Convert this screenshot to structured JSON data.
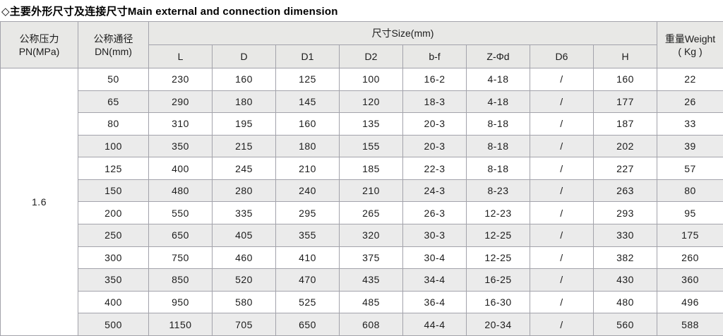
{
  "title": "◇主要外形尺寸及连接尺寸Main external and connection dimension",
  "colors": {
    "border": "#a3a3ab",
    "header_bg": "#e8e8e6",
    "row_bg": "#ffffff",
    "row_alt_bg": "#ebebeb",
    "text": "#1c1c1c"
  },
  "table": {
    "pn_header": [
      "公称压力",
      "PN(MPa)"
    ],
    "dn_header": [
      "公称通径",
      "DN(mm)"
    ],
    "size_group_header": "尺寸Size(mm)",
    "size_columns": [
      "L",
      "D",
      "D1",
      "D2",
      "b-f",
      "Z-Φd",
      "D6",
      "H"
    ],
    "weight_header": [
      "重量Weight",
      "( Kg )"
    ],
    "pn_value": "1.6",
    "rows": [
      {
        "dn": "50",
        "values": [
          "230",
          "160",
          "125",
          "100",
          "16-2",
          "4-18",
          "/",
          "160",
          "22"
        ]
      },
      {
        "dn": "65",
        "values": [
          "290",
          "180",
          "145",
          "120",
          "18-3",
          "4-18",
          "/",
          "177",
          "26"
        ]
      },
      {
        "dn": "80",
        "values": [
          "310",
          "195",
          "160",
          "135",
          "20-3",
          "8-18",
          "/",
          "187",
          "33"
        ]
      },
      {
        "dn": "100",
        "values": [
          "350",
          "215",
          "180",
          "155",
          "20-3",
          "8-18",
          "/",
          "202",
          "39"
        ]
      },
      {
        "dn": "125",
        "values": [
          "400",
          "245",
          "210",
          "185",
          "22-3",
          "8-18",
          "/",
          "227",
          "57"
        ]
      },
      {
        "dn": "150",
        "values": [
          "480",
          "280",
          "240",
          "210",
          "24-3",
          "8-23",
          "/",
          "263",
          "80"
        ]
      },
      {
        "dn": "200",
        "values": [
          "550",
          "335",
          "295",
          "265",
          "26-3",
          "12-23",
          "/",
          "293",
          "95"
        ]
      },
      {
        "dn": "250",
        "values": [
          "650",
          "405",
          "355",
          "320",
          "30-3",
          "12-25",
          "/",
          "330",
          "175"
        ]
      },
      {
        "dn": "300",
        "values": [
          "750",
          "460",
          "410",
          "375",
          "30-4",
          "12-25",
          "/",
          "382",
          "260"
        ]
      },
      {
        "dn": "350",
        "values": [
          "850",
          "520",
          "470",
          "435",
          "34-4",
          "16-25",
          "/",
          "430",
          "360"
        ]
      },
      {
        "dn": "400",
        "values": [
          "950",
          "580",
          "525",
          "485",
          "36-4",
          "16-30",
          "/",
          "480",
          "496"
        ]
      },
      {
        "dn": "500",
        "values": [
          "1150",
          "705",
          "650",
          "608",
          "44-4",
          "20-34",
          "/",
          "560",
          "588"
        ]
      }
    ]
  }
}
